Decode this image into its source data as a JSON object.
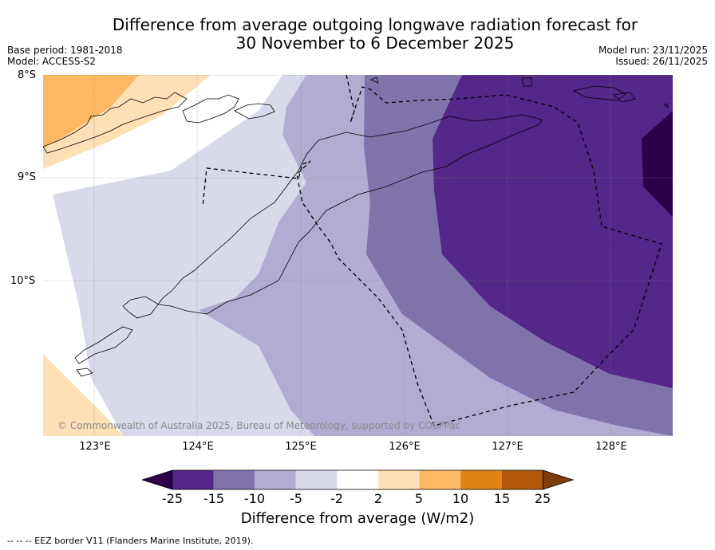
{
  "title_line1": "Difference from average outgoing longwave radiation forecast for",
  "title_line2": "30 November to 6 December 2025",
  "base_period": "Base period: 1981-2018",
  "model": "Model: ACCESS-S2",
  "model_run": "Model run: 23/11/2025",
  "issued": "Issued: 26/11/2025",
  "lat_labels": [
    "8°S",
    "9°S",
    "10°S"
  ],
  "lon_labels": [
    "123°E",
    "124°E",
    "125°E",
    "126°E",
    "127°E",
    "128°E"
  ],
  "copyright": "© Commonwealth of Australia 2025, Bureau of Meteorology, supported by COSPPac",
  "colorbar": {
    "ticks": [
      "-25",
      "-15",
      "-10",
      "-5",
      "-2",
      "2",
      "5",
      "10",
      "15",
      "25"
    ],
    "label": "Difference from average (W/m2)",
    "colors": [
      "#2d004b",
      "#542788",
      "#8073ac",
      "#b2abd2",
      "#d8daeb",
      "#ffffff",
      "#fee0b6",
      "#fdb863",
      "#e08214",
      "#b35806",
      "#7f3b08"
    ]
  },
  "footer": "--  --  -- EEZ border V11 (Flanders Marine Institute, 2019)."
}
